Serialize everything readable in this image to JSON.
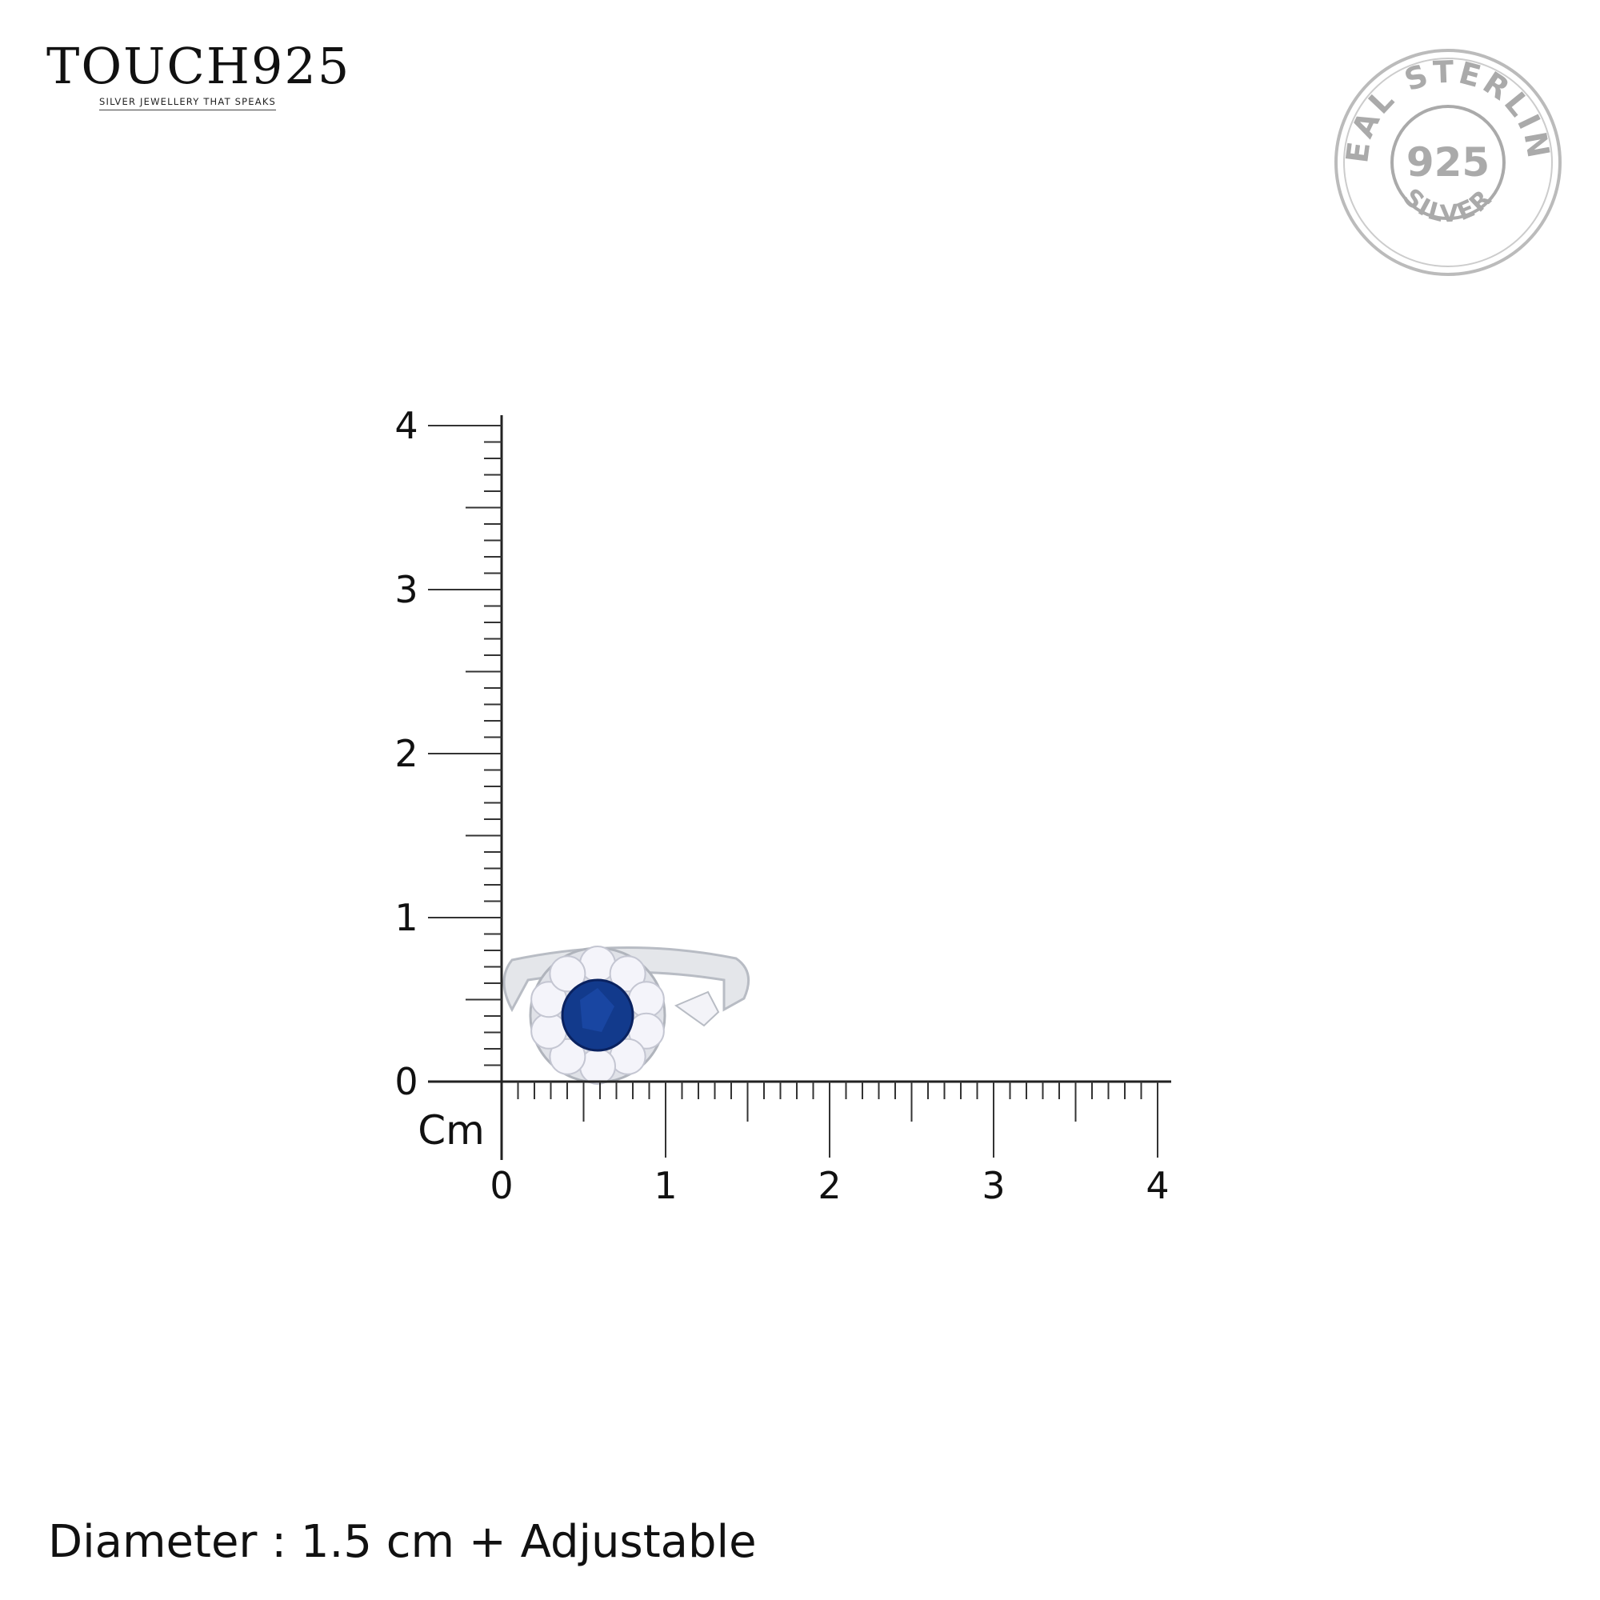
{
  "brand": {
    "name": "TOUCH925",
    "tagline": "SILVER JEWELLERY THAT SPEAKS"
  },
  "stamp": {
    "top_text": "REAL STERLING",
    "center_text": "925",
    "bottom_text": "SILVER"
  },
  "ruler": {
    "unit_label": "Cm",
    "x_ticks": [
      "0",
      "1",
      "2",
      "3",
      "4"
    ],
    "y_ticks": [
      "0",
      "1",
      "2",
      "3",
      "4"
    ],
    "range_cm": [
      0,
      4
    ],
    "minor_step_cm": 0.1
  },
  "product": {
    "stone_color": "#123a8c",
    "metal_color": "#d9dbe0"
  },
  "caption": "Diameter : 1.5 cm + Adjustable"
}
